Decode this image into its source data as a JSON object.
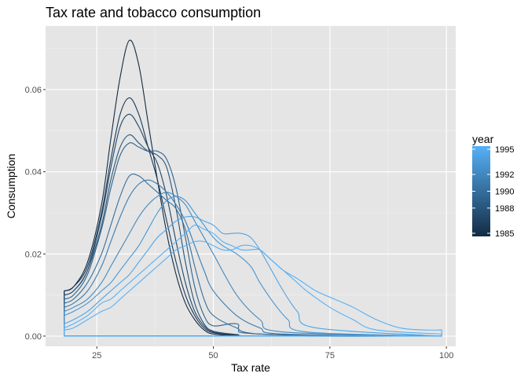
{
  "chart_data": {
    "type": "line",
    "title": "Tax rate and tobacco consumption",
    "xlabel": "Tax rate",
    "ylabel": "Consumption",
    "xlim": [
      14,
      102
    ],
    "ylim": [
      -0.0025,
      0.0755
    ],
    "xticks": [
      25,
      50,
      75,
      100
    ],
    "yticks": [
      0.0,
      0.02,
      0.04,
      0.06
    ],
    "xtick_labels": [
      "25",
      "50",
      "75",
      "100"
    ],
    "ytick_labels": [
      "0.00",
      "0.02",
      "0.04",
      "0.06"
    ],
    "grid": true,
    "background": "#e5e5e5",
    "legend": {
      "title": "year",
      "position": "right",
      "labels": [
        "1995",
        "1992",
        "1990",
        "1988",
        "1985"
      ],
      "label_values": [
        1995,
        1992,
        1990,
        1988,
        1985
      ],
      "range": [
        1985,
        1995
      ],
      "color_low": "#132b43",
      "color_high": "#56b1f7"
    },
    "density_domain": [
      18,
      99
    ],
    "series": [
      {
        "year": 1985,
        "x": [
          18,
          20,
          23,
          26,
          28,
          30,
          32,
          34,
          36,
          38,
          40,
          42,
          44,
          46,
          48,
          50,
          55,
          60,
          99
        ],
        "y": [
          0.011,
          0.012,
          0.018,
          0.032,
          0.048,
          0.063,
          0.072,
          0.066,
          0.052,
          0.038,
          0.025,
          0.015,
          0.008,
          0.004,
          0.0015,
          0.0005,
          0.0001,
          0,
          0
        ]
      },
      {
        "year": 1986,
        "x": [
          18,
          20,
          23,
          26,
          28,
          30,
          32,
          34,
          36,
          38,
          40,
          42,
          44,
          46,
          48,
          50,
          55,
          60,
          99
        ],
        "y": [
          0.011,
          0.012,
          0.017,
          0.03,
          0.043,
          0.054,
          0.058,
          0.054,
          0.046,
          0.038,
          0.028,
          0.018,
          0.01,
          0.005,
          0.002,
          0.0008,
          0.0002,
          0,
          0
        ]
      },
      {
        "year": 1987,
        "x": [
          18,
          20,
          23,
          26,
          28,
          30,
          32,
          34,
          36,
          38,
          40,
          42,
          44,
          46,
          48,
          50,
          55,
          60,
          99
        ],
        "y": [
          0.01,
          0.011,
          0.016,
          0.029,
          0.041,
          0.051,
          0.054,
          0.051,
          0.046,
          0.042,
          0.034,
          0.023,
          0.013,
          0.006,
          0.0025,
          0.001,
          0.0003,
          0,
          0
        ]
      },
      {
        "year": 1988,
        "x": [
          18,
          20,
          23,
          26,
          28,
          30,
          32,
          34,
          36,
          38,
          40,
          42,
          44,
          46,
          48,
          50,
          55,
          60,
          99
        ],
        "y": [
          0.01,
          0.011,
          0.016,
          0.027,
          0.038,
          0.046,
          0.049,
          0.047,
          0.045,
          0.044,
          0.041,
          0.031,
          0.018,
          0.008,
          0.003,
          0.0012,
          0.0004,
          0,
          0
        ]
      },
      {
        "year": 1989,
        "x": [
          18,
          20,
          23,
          26,
          28,
          30,
          32,
          34,
          36,
          38,
          40,
          42,
          44,
          46,
          48,
          50,
          55,
          60,
          99
        ],
        "y": [
          0.009,
          0.01,
          0.015,
          0.026,
          0.036,
          0.044,
          0.047,
          0.046,
          0.045,
          0.045,
          0.043,
          0.036,
          0.024,
          0.012,
          0.005,
          0.0025,
          0.003,
          0.0005,
          0
        ]
      },
      {
        "year": 1990,
        "x": [
          18,
          20,
          23,
          26,
          28,
          30,
          32,
          34,
          36,
          38,
          40,
          42,
          44,
          46,
          48,
          50,
          55,
          60,
          99
        ],
        "y": [
          0.008,
          0.009,
          0.013,
          0.02,
          0.027,
          0.034,
          0.039,
          0.039,
          0.037,
          0.035,
          0.033,
          0.031,
          0.026,
          0.017,
          0.009,
          0.005,
          0.002,
          0.0005,
          0
        ]
      },
      {
        "year": 1991,
        "x": [
          18,
          20,
          23,
          26,
          28,
          30,
          32,
          34,
          36,
          38,
          40,
          42,
          44,
          46,
          48,
          50,
          55,
          60,
          65,
          99
        ],
        "y": [
          0.007,
          0.008,
          0.011,
          0.017,
          0.023,
          0.029,
          0.034,
          0.037,
          0.038,
          0.037,
          0.035,
          0.032,
          0.028,
          0.022,
          0.016,
          0.011,
          0.005,
          0.002,
          0.0005,
          0
        ]
      },
      {
        "year": 1992,
        "x": [
          18,
          20,
          23,
          26,
          28,
          30,
          32,
          34,
          36,
          38,
          40,
          42,
          44,
          46,
          48,
          50,
          55,
          60,
          65,
          99
        ],
        "y": [
          0.006,
          0.007,
          0.009,
          0.013,
          0.017,
          0.021,
          0.025,
          0.029,
          0.032,
          0.034,
          0.035,
          0.034,
          0.032,
          0.028,
          0.024,
          0.02,
          0.01,
          0.004,
          0.001,
          0
        ]
      },
      {
        "year": 1993,
        "x": [
          18,
          20,
          23,
          26,
          28,
          30,
          32,
          34,
          36,
          38,
          40,
          42,
          44,
          46,
          48,
          50,
          52,
          55,
          58,
          60,
          63,
          66,
          70,
          99
        ],
        "y": [
          0.005,
          0.006,
          0.008,
          0.011,
          0.013,
          0.016,
          0.019,
          0.022,
          0.026,
          0.03,
          0.033,
          0.034,
          0.033,
          0.03,
          0.027,
          0.024,
          0.022,
          0.02,
          0.017,
          0.013,
          0.008,
          0.004,
          0.001,
          0
        ]
      },
      {
        "year": 1994,
        "x": [
          18,
          20,
          23,
          26,
          28,
          30,
          32,
          34,
          36,
          38,
          40,
          42,
          44,
          46,
          48,
          50,
          52,
          54,
          56,
          58,
          60,
          62,
          65,
          68,
          72,
          99
        ],
        "y": [
          0.003,
          0.004,
          0.006,
          0.009,
          0.011,
          0.013,
          0.015,
          0.018,
          0.021,
          0.024,
          0.026,
          0.028,
          0.029,
          0.029,
          0.028,
          0.027,
          0.025,
          0.025,
          0.025,
          0.024,
          0.021,
          0.017,
          0.011,
          0.006,
          0.002,
          0
        ]
      },
      {
        "year": 1995,
        "x": [
          18,
          20,
          23,
          26,
          28,
          30,
          32,
          34,
          36,
          38,
          40,
          42,
          44,
          46,
          48,
          50,
          52,
          54,
          56,
          58,
          60,
          62,
          64,
          66,
          68,
          70,
          75,
          80,
          85,
          99
        ],
        "y": [
          0.002,
          0.003,
          0.005,
          0.008,
          0.009,
          0.011,
          0.013,
          0.015,
          0.017,
          0.019,
          0.021,
          0.023,
          0.025,
          0.027,
          0.026,
          0.025,
          0.023,
          0.022,
          0.021,
          0.021,
          0.021,
          0.019,
          0.017,
          0.015,
          0.013,
          0.011,
          0.007,
          0.004,
          0.0015,
          0.0005
        ]
      },
      {
        "year": 1995,
        "x": [
          18,
          20,
          23,
          26,
          28,
          30,
          32,
          34,
          36,
          38,
          40,
          42,
          44,
          46,
          48,
          50,
          52,
          54,
          56,
          58,
          60,
          62,
          65,
          68,
          72,
          76,
          80,
          85,
          90,
          95,
          99
        ],
        "y": [
          0.0015,
          0.002,
          0.004,
          0.006,
          0.007,
          0.009,
          0.011,
          0.013,
          0.015,
          0.017,
          0.019,
          0.021,
          0.022,
          0.023,
          0.023,
          0.022,
          0.021,
          0.021,
          0.022,
          0.022,
          0.021,
          0.019,
          0.016,
          0.014,
          0.011,
          0.009,
          0.007,
          0.004,
          0.002,
          0.0015,
          0.0015
        ]
      }
    ]
  }
}
